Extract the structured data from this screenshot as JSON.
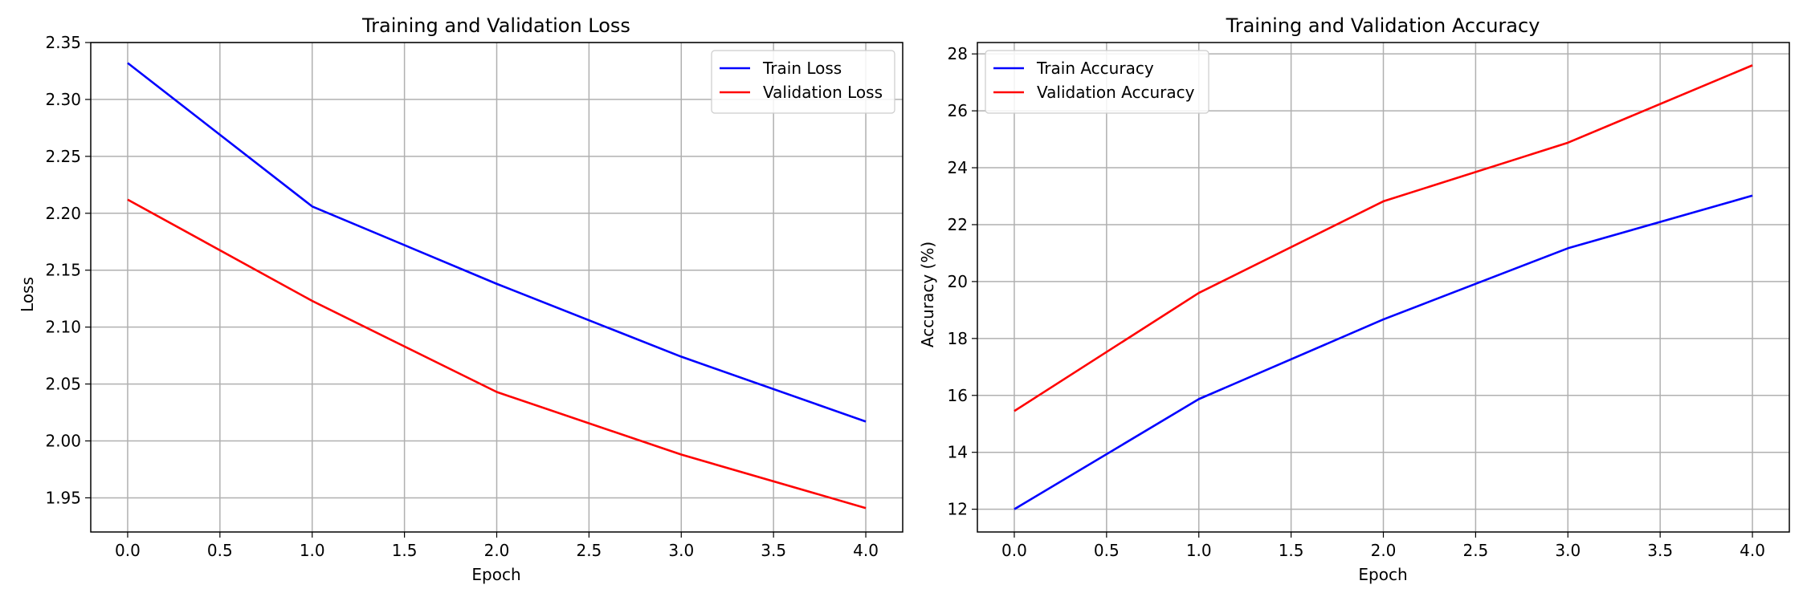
{
  "colors": {
    "train": "#0000ff",
    "validation": "#ff0000",
    "grid": "#b0b0b0",
    "axes": "#000000"
  },
  "chart_data": [
    {
      "type": "line",
      "title": "Training and Validation Loss",
      "xlabel": "Epoch",
      "ylabel": "Loss",
      "xlim": [
        -0.2,
        4.2
      ],
      "ylim": [
        1.92,
        2.35
      ],
      "xticks": [
        0.0,
        0.5,
        1.0,
        1.5,
        2.0,
        2.5,
        3.0,
        3.5,
        4.0
      ],
      "xtick_labels": [
        "0.0",
        "0.5",
        "1.0",
        "1.5",
        "2.0",
        "2.5",
        "3.0",
        "3.5",
        "4.0"
      ],
      "yticks": [
        1.95,
        2.0,
        2.05,
        2.1,
        2.15,
        2.2,
        2.25,
        2.3,
        2.35
      ],
      "ytick_labels": [
        "1.95",
        "2.00",
        "2.05",
        "2.10",
        "2.15",
        "2.20",
        "2.25",
        "2.30",
        "2.35"
      ],
      "grid": true,
      "legend_position": "top-right",
      "x": [
        0,
        1,
        2,
        3,
        4
      ],
      "series": [
        {
          "name": "Train Loss",
          "color": "#0000ff",
          "values": [
            2.332,
            2.206,
            2.138,
            2.074,
            2.017
          ]
        },
        {
          "name": "Validation Loss",
          "color": "#ff0000",
          "values": [
            2.212,
            2.123,
            2.043,
            1.988,
            1.941
          ]
        }
      ]
    },
    {
      "type": "line",
      "title": "Training and Validation Accuracy",
      "xlabel": "Epoch",
      "ylabel": "Accuracy (%)",
      "xlim": [
        -0.2,
        4.2
      ],
      "ylim": [
        11.2,
        28.4
      ],
      "xticks": [
        0.0,
        0.5,
        1.0,
        1.5,
        2.0,
        2.5,
        3.0,
        3.5,
        4.0
      ],
      "xtick_labels": [
        "0.0",
        "0.5",
        "1.0",
        "1.5",
        "2.0",
        "2.5",
        "3.0",
        "3.5",
        "4.0"
      ],
      "yticks": [
        12,
        14,
        16,
        18,
        20,
        22,
        24,
        26,
        28
      ],
      "ytick_labels": [
        "12",
        "14",
        "16",
        "18",
        "20",
        "22",
        "24",
        "26",
        "28"
      ],
      "grid": true,
      "legend_position": "top-left",
      "x": [
        0,
        1,
        2,
        3,
        4
      ],
      "series": [
        {
          "name": "Train Accuracy",
          "color": "#0000ff",
          "values": [
            12.0,
            15.87,
            18.67,
            21.17,
            23.02
          ]
        },
        {
          "name": "Validation Accuracy",
          "color": "#ff0000",
          "values": [
            15.45,
            19.6,
            22.82,
            24.88,
            27.6
          ]
        }
      ]
    }
  ]
}
